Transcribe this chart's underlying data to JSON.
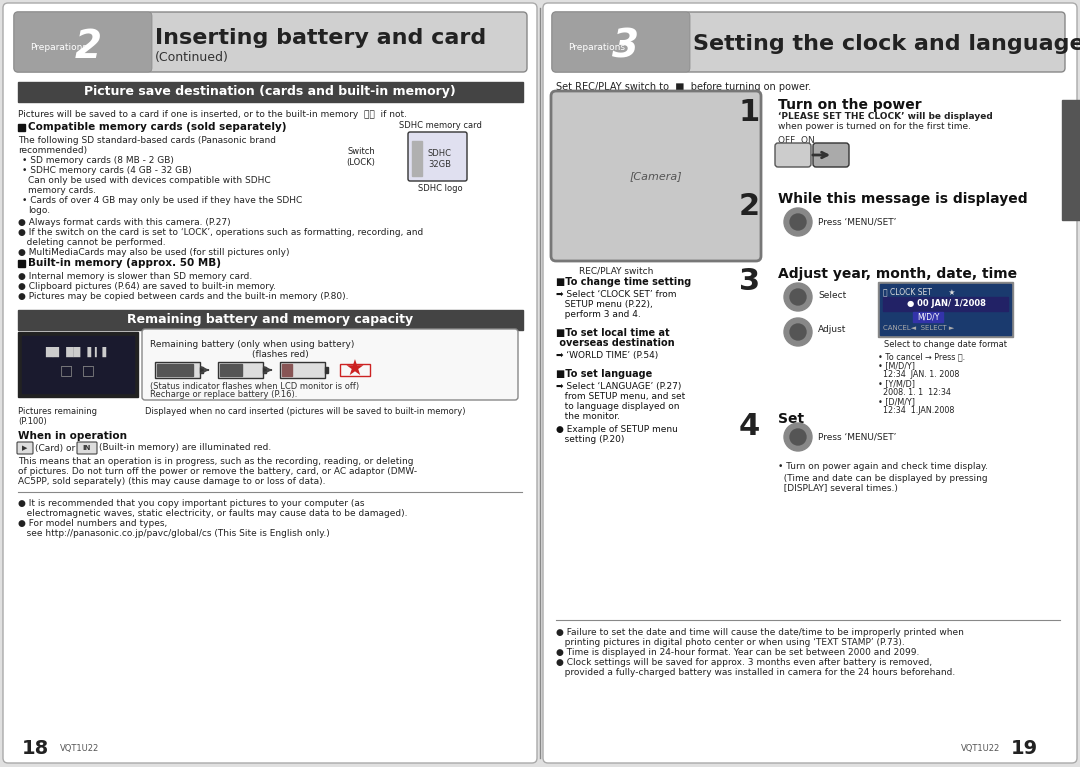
{
  "bg_color": "#ffffff",
  "page_bg": "#f5f5f5",
  "left_page": {
    "header_bg": "#c8c8c8",
    "header_number": "2",
    "header_prep": "Preparations",
    "header_title": "Inserting battery and card",
    "header_subtitle": "(Continued)",
    "section1_bg": "#555555",
    "section1_title": "Picture save destination (cards and built-in memory)",
    "section2_bg": "#555555",
    "section2_title": "Remaining battery and memory capacity",
    "page_number": "18",
    "vqt": "VQT1U22"
  },
  "right_page": {
    "header_bg": "#c8c8c8",
    "header_number": "3",
    "header_prep": "Preparations",
    "header_title": "Setting the clock and language",
    "page_number": "19",
    "vqt": "VQT1U22"
  },
  "divider_color": "#999999",
  "text_color": "#222222",
  "accent_color": "#444444"
}
